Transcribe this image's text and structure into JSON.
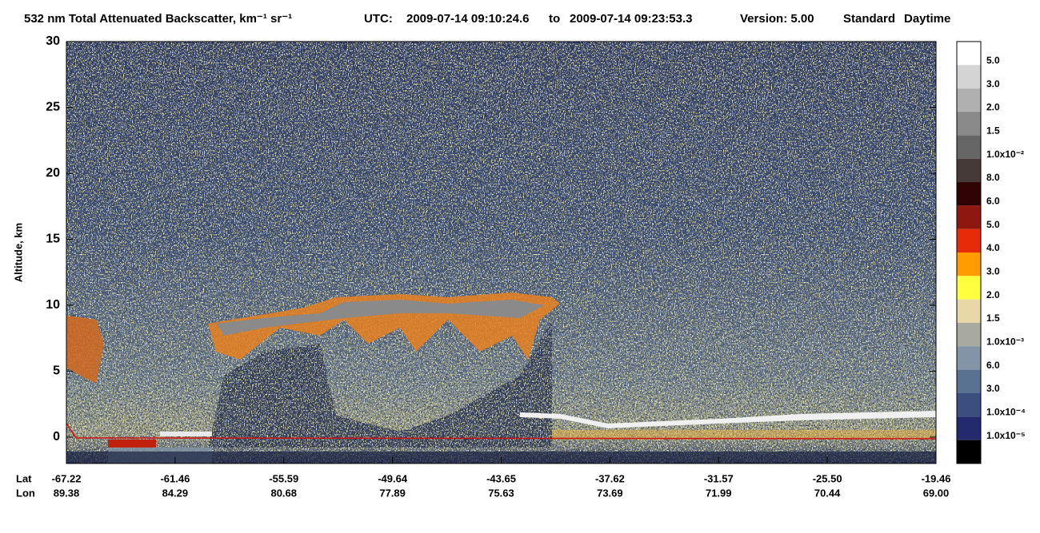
{
  "chart_data": {
    "type": "heatmap",
    "title": "532 nm Total Attenuated Backscatter, km⁻¹ sr⁻¹",
    "utc_label": "UTC:",
    "start_time": "2009-07-14 09:10:24.6",
    "to_label": "to",
    "end_time": "2009-07-14 09:23:53.3",
    "version": "Version: 5.00",
    "product": "Standard",
    "illumination": "Daytime",
    "ylabel": "Altitude, km",
    "ylim": [
      -2,
      30
    ],
    "yticks": [
      0,
      5,
      10,
      15,
      20,
      25,
      30
    ],
    "x_rows": [
      {
        "label": "Lat",
        "categories": [
          "-67.22",
          "-61.46",
          "-55.59",
          "-49.64",
          "-43.65",
          "-37.62",
          "-31.57",
          "-25.50",
          "-19.46"
        ]
      },
      {
        "label": "Lon",
        "categories": [
          "89.38",
          "84.29",
          "80.68",
          "77.89",
          "75.63",
          "73.69",
          "71.99",
          "70.44",
          "69.00"
        ]
      }
    ],
    "colorbar": {
      "colors": [
        "#ffffff",
        "#d4d4d4",
        "#b0b0b0",
        "#8a8a8a",
        "#666666",
        "#463a38",
        "#300404",
        "#8e1810",
        "#e62a0a",
        "#ff9c00",
        "#ffff40",
        "#e8d8a8",
        "#a8aaa0",
        "#8294a6",
        "#5a7292",
        "#3a4e80",
        "#242a6e",
        "#000000"
      ],
      "labels": [
        "5.0",
        "3.0",
        "2.0",
        "1.5",
        "1.0x10⁻²",
        "8.0",
        "6.0",
        "5.0",
        "4.0",
        "3.0",
        "2.0",
        "1.5",
        "1.0x10⁻³",
        "6.0",
        "3.0",
        "1.0x10⁻⁴",
        "1.0x10⁻⁵"
      ]
    }
  }
}
